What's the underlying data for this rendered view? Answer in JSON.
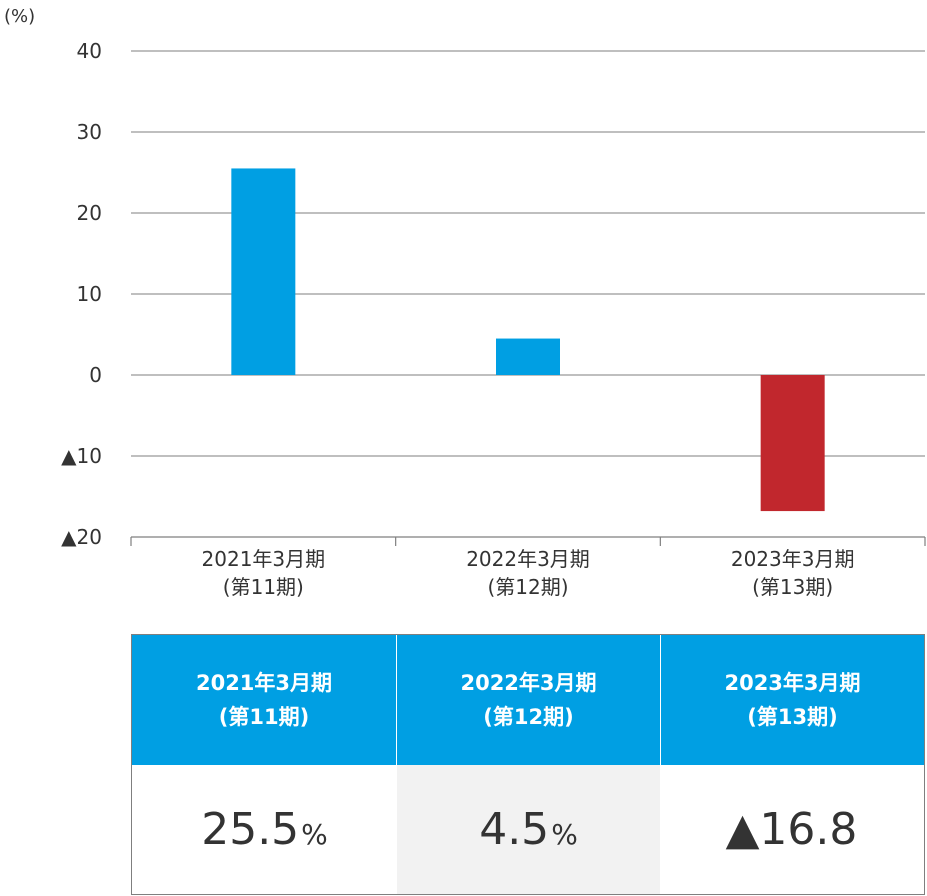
{
  "chart_data": {
    "type": "bar",
    "unit_label": "(%)",
    "categories": [
      {
        "line1": "2021年3月期",
        "line2": "(第11期)"
      },
      {
        "line1": "2022年3月期",
        "line2": "(第12期)"
      },
      {
        "line1": "2023年3月期",
        "line2": "(第13期)"
      }
    ],
    "values": [
      25.5,
      4.5,
      -16.8
    ],
    "ylim": [
      -20,
      40
    ],
    "ytick_values": [
      40,
      30,
      20,
      10,
      0,
      -10,
      -20
    ],
    "ytick_labels": [
      "40",
      "30",
      "20",
      "10",
      "0",
      "▲10",
      "▲20"
    ],
    "grid": true,
    "colors": {
      "positive": "#009fe3",
      "negative": "#c1272d",
      "grid": "#999999",
      "axis": "#7f7f7f"
    }
  },
  "table": {
    "headers": [
      {
        "line1": "2021年3月期",
        "line2": "(第11期)"
      },
      {
        "line1": "2022年3月期",
        "line2": "(第12期)"
      },
      {
        "line1": "2023年3月期",
        "line2": "(第13期)"
      }
    ],
    "values": [
      {
        "number": "25.5",
        "unit": "%"
      },
      {
        "number": "4.5",
        "unit": "%"
      },
      {
        "number": "▲16.8",
        "unit": ""
      }
    ]
  }
}
